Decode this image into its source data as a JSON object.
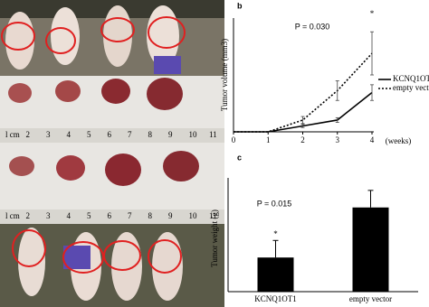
{
  "chart_data": [
    {
      "type": "line",
      "panel": "b",
      "ylabel": "Tumor volume (mm3)",
      "xlabel": "(weeks)",
      "x": [
        0,
        1,
        2,
        3,
        4
      ],
      "xlim": [
        0,
        4
      ],
      "xticks": [
        0,
        1,
        2,
        3,
        4
      ],
      "ylim": [
        0,
        2900
      ],
      "annotations": [
        "P = 0.030",
        "*"
      ],
      "series": [
        {
          "name": "KCNQ1OT1",
          "color": "#000000",
          "style": "solid",
          "values": [
            0,
            0,
            150,
            300,
            1000
          ],
          "errors": [
            0,
            0,
            40,
            60,
            200
          ]
        },
        {
          "name": "empty vector",
          "color": "#000000",
          "style": "dotted",
          "values": [
            0,
            0,
            300,
            1050,
            2000
          ],
          "errors": [
            0,
            0,
            90,
            250,
            550
          ]
        }
      ]
    },
    {
      "type": "bar",
      "panel": "c",
      "ylabel": "Tumor weight (g)",
      "categories": [
        "KCNQ1OT1",
        "empty vector"
      ],
      "values": [
        0.6,
        1.48
      ],
      "errors": [
        0.3,
        0.3
      ],
      "color": "#000000",
      "ylim": [
        0,
        2.0
      ],
      "annotations": [
        "P = 0.015",
        "*"
      ]
    }
  ],
  "photos": {
    "rulers": [
      [
        "l cm",
        "2",
        "3",
        "4",
        "5",
        "6",
        "7",
        "8",
        "9",
        "10",
        "11"
      ],
      [
        "l cm",
        "2",
        "3",
        "4",
        "5",
        "6",
        "7",
        "8",
        "9",
        "10",
        "11"
      ]
    ]
  }
}
